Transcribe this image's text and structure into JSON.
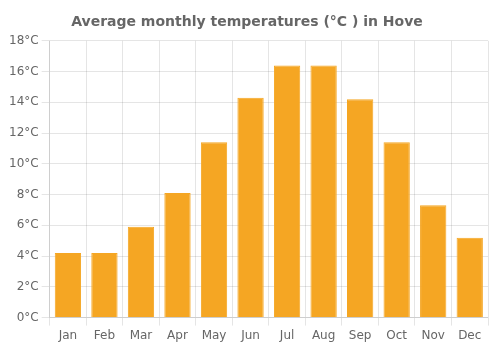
{
  "chart_data": {
    "type": "bar",
    "title": "Average monthly temperatures (°C ) in Hove",
    "categories": [
      "Jan",
      "Feb",
      "Mar",
      "Apr",
      "May",
      "Jun",
      "Jul",
      "Aug",
      "Sep",
      "Oct",
      "Nov",
      "Dec"
    ],
    "values": [
      4.2,
      4.2,
      5.9,
      8.1,
      11.4,
      14.3,
      16.4,
      16.4,
      14.2,
      11.4,
      7.3,
      5.2
    ],
    "color": "#F5A623",
    "ylim": [
      0,
      18
    ],
    "yticks": [
      {
        "value": 0,
        "label": "0°C"
      },
      {
        "value": 2,
        "label": "2°C"
      },
      {
        "value": 4,
        "label": "4°C"
      },
      {
        "value": 6,
        "label": "6°C"
      },
      {
        "value": 8,
        "label": "8°C"
      },
      {
        "value": 10,
        "label": "10°C"
      },
      {
        "value": 12,
        "label": "12°C"
      },
      {
        "value": 14,
        "label": "14°C"
      },
      {
        "value": 16,
        "label": "16°C"
      },
      {
        "value": 18,
        "label": "18°C"
      }
    ],
    "grid": true
  }
}
